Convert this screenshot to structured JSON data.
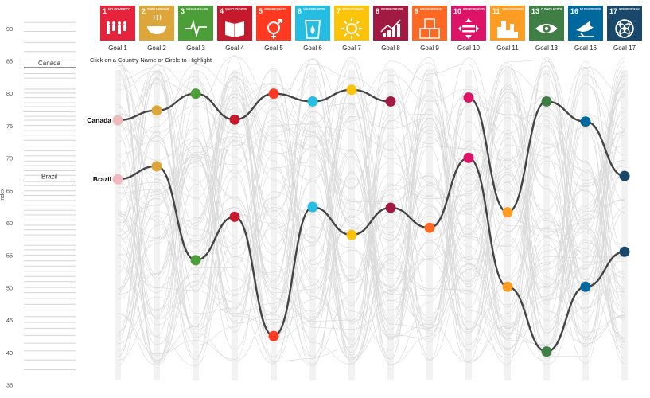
{
  "instruction": "Click on a Country Name or Circle to Highlight",
  "colors": {
    "line": "#444444",
    "background_lines": "#d9d9d9",
    "column_bands": "#f2f2f2",
    "canada_dot": "#ecbcbc",
    "brazil_dot": "#f2b8bd"
  },
  "chart_data": {
    "type": "line",
    "title": "",
    "ylabel": "Index",
    "xlabel": "",
    "ylim": [
      35,
      92
    ],
    "yticks": [
      35,
      40,
      45,
      50,
      55,
      60,
      65,
      70,
      75,
      80,
      85,
      90
    ],
    "grid": false,
    "categories": [
      "Goal 1",
      "Goal 2",
      "Goal 3",
      "Goal 4",
      "Goal 5",
      "Goal 6",
      "Goal 7",
      "Goal 8",
      "Goal 9",
      "Goal 10",
      "Goal 11",
      "Goal 13",
      "Goal 16",
      "Goal 17"
    ],
    "goals": [
      {
        "label": "Goal 1",
        "number": "1",
        "title": "NO POVERTY",
        "color": "#e5243b",
        "icon": "family-icon"
      },
      {
        "label": "Goal 2",
        "number": "2",
        "title": "ZERO HUNGER",
        "color": "#dda63a",
        "icon": "bowl-icon"
      },
      {
        "label": "Goal 3",
        "number": "3",
        "title": "GOOD HEALTH AND WELL-BEING",
        "color": "#4c9f38",
        "icon": "heartbeat-icon"
      },
      {
        "label": "Goal 4",
        "number": "4",
        "title": "QUALITY EDUCATION",
        "color": "#c5192d",
        "icon": "book-icon"
      },
      {
        "label": "Goal 5",
        "number": "5",
        "title": "GENDER EQUALITY",
        "color": "#ff3a21",
        "icon": "gender-icon"
      },
      {
        "label": "Goal 6",
        "number": "6",
        "title": "CLEAN WATER AND SANITATION",
        "color": "#26bde2",
        "icon": "water-drop-icon"
      },
      {
        "label": "Goal 7",
        "number": "7",
        "title": "AFFORDABLE AND CLEAN ENERGY",
        "color": "#fcc30b",
        "icon": "sun-icon"
      },
      {
        "label": "Goal 8",
        "number": "8",
        "title": "DECENT WORK AND ECONOMIC GROWTH",
        "color": "#a21942",
        "icon": "growth-chart-icon"
      },
      {
        "label": "Goal 9",
        "number": "9",
        "title": "INDUSTRY, INNOVATION AND INFRASTRUCTURE",
        "color": "#fd6925",
        "icon": "cubes-icon"
      },
      {
        "label": "Goal 10",
        "number": "10",
        "title": "REDUCED INEQUALITIES",
        "color": "#dd1367",
        "icon": "equality-icon"
      },
      {
        "label": "Goal 11",
        "number": "11",
        "title": "SUSTAINABLE CITIES AND COMMUNITIES",
        "color": "#fd9d24",
        "icon": "city-icon"
      },
      {
        "label": "Goal 13",
        "number": "13",
        "title": "CLIMATE ACTION",
        "color": "#3f7e44",
        "icon": "eye-icon"
      },
      {
        "label": "Goal 16",
        "number": "16",
        "title": "PEACE, JUSTICE AND STRONG INSTITUTIONS",
        "color": "#00689d",
        "icon": "dove-icon"
      },
      {
        "label": "Goal 17",
        "number": "17",
        "title": "PARTNERSHIPS FOR THE GOALS",
        "color": "#19486a",
        "icon": "rings-icon"
      }
    ],
    "series": [
      {
        "name": "Canada",
        "values": [
          75.9,
          77.4,
          80.0,
          76.0,
          80.0,
          78.8,
          80.6,
          78.8,
          null,
          79.4,
          61.7,
          78.8,
          75.7,
          67.3
        ]
      },
      {
        "name": "Brazil",
        "values": [
          66.8,
          68.8,
          54.3,
          61.0,
          42.6,
          62.5,
          58.2,
          62.4,
          59.3,
          70.1,
          50.2,
          40.2,
          50.2,
          55.6
        ]
      }
    ],
    "strip_highlights": [
      {
        "name": "Canada",
        "value": 84.0
      },
      {
        "name": "Brazil",
        "value": 66.5
      }
    ],
    "strip_values": [
      91.0,
      89.6,
      87.9,
      86.5,
      85.2,
      83.1,
      82.4,
      81.5,
      80.7,
      80.1,
      79.4,
      78.6,
      78.0,
      77.2,
      76.5,
      75.9,
      75.1,
      74.3,
      73.6,
      72.8,
      71.9,
      71.2,
      70.4,
      69.6,
      68.9,
      68.1,
      67.4,
      65.8,
      65.0,
      64.3,
      63.5,
      62.8,
      62.0,
      61.3,
      60.5,
      59.7,
      59.0,
      58.2,
      57.4,
      56.6,
      55.9,
      55.1,
      54.2,
      53.4,
      52.6,
      51.8,
      51.0,
      50.1,
      49.3,
      48.4,
      47.5,
      46.6,
      45.6,
      44.7,
      43.8,
      42.7,
      41.5,
      40.3,
      38.9,
      37.4
    ]
  }
}
